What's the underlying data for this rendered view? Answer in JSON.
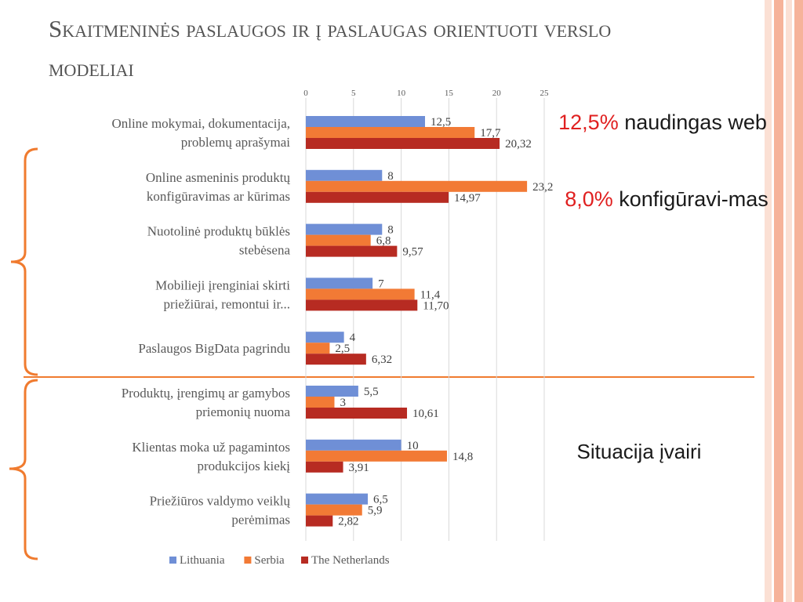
{
  "slide": {
    "title": "Skaitmeninės paslaugos ir į paslaugas orientuoti verslo modeliai"
  },
  "notes": [
    {
      "highlight": "12,5%",
      "text": " naudingas web"
    },
    {
      "highlight": "8,0%",
      "text": " konfigūravi-mas"
    },
    {
      "highlight": "",
      "text": "Situacija įvairi"
    }
  ],
  "colors": {
    "Lithuania": "#6f8fd6",
    "Serbia": "#f27a35",
    "The Netherlands": "#b72b22",
    "accent": "#f07b2f",
    "stripes": "#f6b39a"
  },
  "chart_data": {
    "type": "bar",
    "orientation": "horizontal",
    "categories": [
      [
        "Online mokymai, dokumentacija,",
        "problemų aprašymai"
      ],
      [
        "Online asmeninis produktų",
        "konfigūravimas ar kūrimas"
      ],
      [
        "Nuotolinė produktų būklės",
        "stebėsena"
      ],
      [
        "Mobilieji įrenginiai skirti",
        "priežiūrai, remontui ir..."
      ],
      [
        "Paslaugos BigData pagrindu"
      ],
      [
        "Produktų, įrengimų ar gamybos",
        "priemonių nuoma"
      ],
      [
        "Klientas moka už pagamintos",
        "produkcijos kiekį"
      ],
      [
        "Priežiūros valdymo veiklų",
        "perėmimas"
      ]
    ],
    "series": [
      {
        "name": "Lithuania",
        "values": [
          12.5,
          8,
          8,
          7,
          4,
          5.5,
          10,
          6.5
        ],
        "labels": [
          "12,5",
          "8",
          "8",
          "7",
          "4",
          "5,5",
          "10",
          "6,5"
        ]
      },
      {
        "name": "Serbia",
        "values": [
          17.7,
          23.2,
          6.8,
          11.4,
          2.5,
          3,
          14.8,
          5.9
        ],
        "labels": [
          "17,7",
          "23,2",
          "6,8",
          "11,4",
          "2,5",
          "3",
          "14,8",
          "5,9"
        ]
      },
      {
        "name": "The Netherlands",
        "values": [
          20.32,
          14.97,
          9.57,
          11.7,
          6.32,
          10.61,
          3.91,
          2.82
        ],
        "labels": [
          "20,32",
          "14,97",
          "9,57",
          "11,70",
          "6,32",
          "10,61",
          "3,91",
          "2,82"
        ]
      }
    ],
    "xticks": [
      0,
      5,
      10,
      15,
      20,
      25
    ],
    "xlim": [
      0,
      25
    ],
    "grid": true,
    "legend": "bottom"
  }
}
